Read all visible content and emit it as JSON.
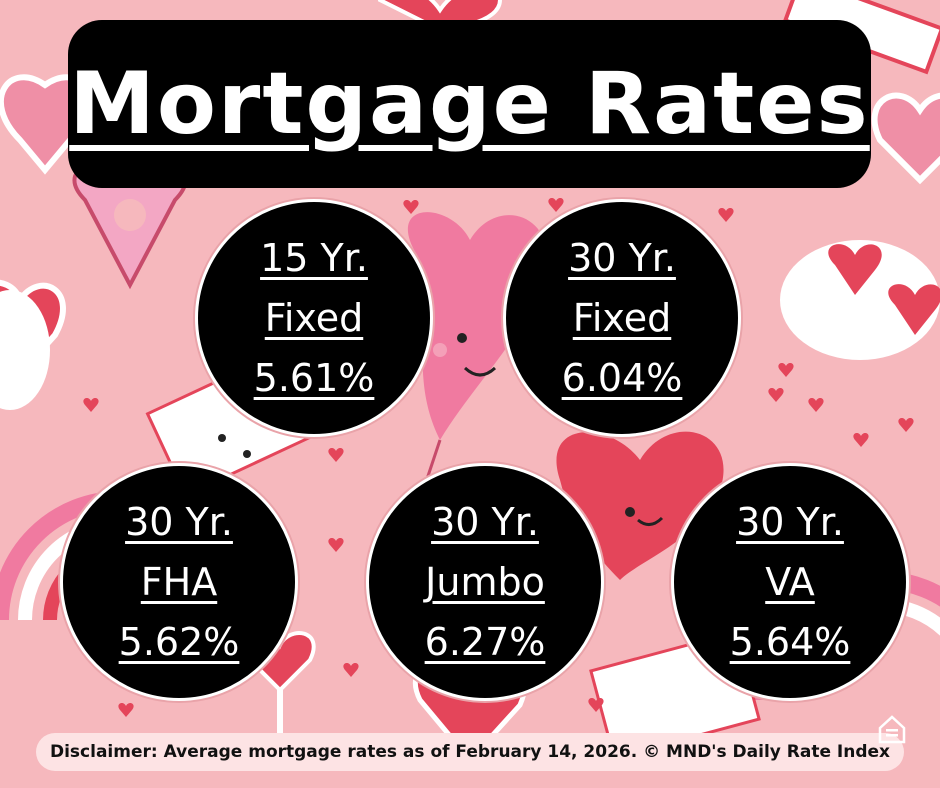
{
  "title": "Mortgage Rates",
  "rates": [
    {
      "term": "15 Yr.",
      "type": "Fixed",
      "rate": "5.61%"
    },
    {
      "term": "30 Yr.",
      "type": "Fixed",
      "rate": "6.04%"
    },
    {
      "term": "30 Yr.",
      "type": "FHA",
      "rate": "5.62%"
    },
    {
      "term": "30 Yr.",
      "type": "Jumbo",
      "rate": "6.27%"
    },
    {
      "term": "30 Yr.",
      "type": "VA",
      "rate": "5.64%"
    }
  ],
  "disclaimer": "Disclaimer: Average mortgage rates as of February 14, 2026. © MND's Daily Rate Index",
  "colors": {
    "background": "#f6b8bd",
    "panel": "#000000",
    "text": "#ffffff",
    "heart_red": "#e4455a",
    "heart_pink": "#f07aa0"
  },
  "icons": [
    "heart-icon",
    "heart-balloon-icon",
    "envelope-icon",
    "donut-icon",
    "heart-sunglasses-icon",
    "rainbow-icon",
    "equal-housing-logo-icon"
  ]
}
